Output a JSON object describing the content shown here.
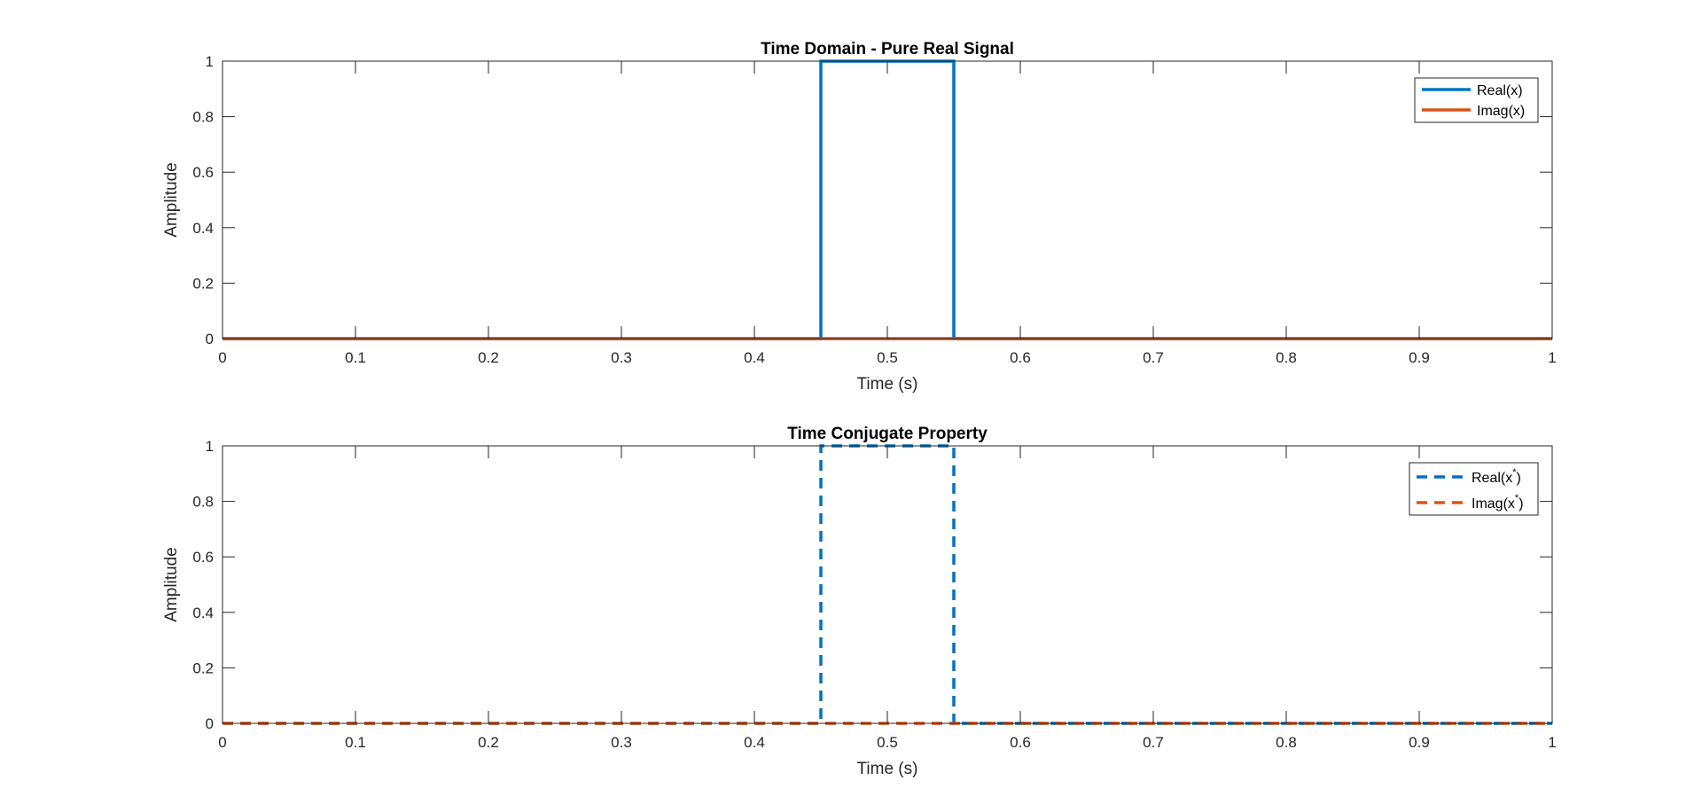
{
  "chart_data": [
    {
      "type": "line",
      "title": "Time Domain - Pure Real Signal",
      "xlabel": "Time (s)",
      "ylabel": "Amplitude",
      "xlim": [
        0,
        1
      ],
      "ylim": [
        0,
        1
      ],
      "xticks": [
        0,
        0.1,
        0.2,
        0.3,
        0.4,
        0.5,
        0.6,
        0.7,
        0.8,
        0.9,
        1
      ],
      "xtick_labels": [
        "0",
        "0.1",
        "0.2",
        "0.3",
        "0.4",
        "0.5",
        "0.6",
        "0.7",
        "0.8",
        "0.9",
        "1"
      ],
      "yticks": [
        0,
        0.2,
        0.4,
        0.6,
        0.8,
        1
      ],
      "ytick_labels": [
        "0",
        "0.2",
        "0.4",
        "0.6",
        "0.8",
        "1"
      ],
      "grid": false,
      "legend_position": "top-right",
      "series": [
        {
          "name": "Real(x)",
          "legend_label": "Real(x)",
          "color": "#0072BD",
          "style": "solid",
          "x": [
            0,
            0.45,
            0.45,
            0.55,
            0.55,
            1
          ],
          "y": [
            0,
            0,
            1,
            1,
            0,
            0
          ]
        },
        {
          "name": "Imag(x)",
          "legend_label": "Imag(x)",
          "color": "#D95319",
          "style": "solid",
          "x": [
            0,
            1
          ],
          "y": [
            0,
            0
          ]
        }
      ]
    },
    {
      "type": "line",
      "title": "Time Conjugate Property",
      "xlabel": "Time (s)",
      "ylabel": "Amplitude",
      "xlim": [
        0,
        1
      ],
      "ylim": [
        0,
        1
      ],
      "xticks": [
        0,
        0.1,
        0.2,
        0.3,
        0.4,
        0.5,
        0.6,
        0.7,
        0.8,
        0.9,
        1
      ],
      "xtick_labels": [
        "0",
        "0.1",
        "0.2",
        "0.3",
        "0.4",
        "0.5",
        "0.6",
        "0.7",
        "0.8",
        "0.9",
        "1"
      ],
      "yticks": [
        0,
        0.2,
        0.4,
        0.6,
        0.8,
        1
      ],
      "ytick_labels": [
        "0",
        "0.2",
        "0.4",
        "0.6",
        "0.8",
        "1"
      ],
      "grid": false,
      "legend_position": "top-right",
      "series": [
        {
          "name": "Real(x*)",
          "legend_label": "Real(x",
          "legend_superscript": "*",
          "legend_suffix": ")",
          "color": "#0072BD",
          "style": "dashed",
          "x": [
            0,
            0.45,
            0.45,
            0.55,
            0.55,
            1
          ],
          "y": [
            0,
            0,
            1,
            1,
            0,
            0
          ]
        },
        {
          "name": "Imag(x*)",
          "legend_label": "Imag(x",
          "legend_superscript": "*",
          "legend_suffix": ")",
          "color": "#D95319",
          "style": "dashed",
          "x": [
            0,
            1
          ],
          "y": [
            0,
            0
          ]
        }
      ]
    }
  ]
}
